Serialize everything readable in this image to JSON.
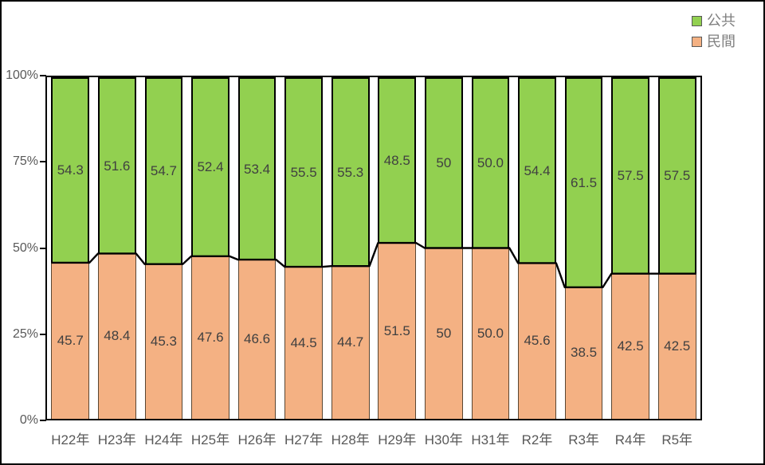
{
  "window": {
    "background": "#ffffff",
    "frame_border_color": "#000000"
  },
  "chart_data": {
    "type": "bar",
    "subtype": "stacked-100-percent-column",
    "title": "",
    "xlabel": "",
    "ylabel": "",
    "grid": false,
    "legend_position": "top-right",
    "categories": [
      "H22年",
      "H23年",
      "H24年",
      "H25年",
      "H26年",
      "H27年",
      "H28年",
      "H29年",
      "H30年",
      "H31年",
      "R2年",
      "R3年",
      "R4年",
      "R5年"
    ],
    "series": [
      {
        "name": "公共",
        "color": "#92D050",
        "values": [
          54.3,
          51.6,
          54.7,
          52.4,
          53.4,
          55.5,
          55.3,
          48.5,
          50,
          50.0,
          54.4,
          61.5,
          57.5,
          57.5
        ],
        "labels": [
          "54.3",
          "51.6",
          "54.7",
          "52.4",
          "53.4",
          "55.5",
          "55.3",
          "48.5",
          "50",
          "50.0",
          "54.4",
          "61.5",
          "57.5",
          "57.5"
        ]
      },
      {
        "name": "民間",
        "color": "#F4B183",
        "values": [
          45.7,
          48.4,
          45.3,
          47.6,
          46.6,
          44.5,
          44.7,
          51.5,
          50,
          50.0,
          45.6,
          38.5,
          42.5,
          42.5
        ],
        "labels": [
          "45.7",
          "48.4",
          "45.3",
          "47.6",
          "46.6",
          "44.5",
          "44.7",
          "51.5",
          "50",
          "50.0",
          "45.6",
          "38.5",
          "42.5",
          "42.5"
        ]
      }
    ],
    "y_axis": {
      "min": 0,
      "max": 100,
      "unit": "%",
      "ticks": [
        "100%",
        "75%",
        "50%",
        "25%",
        "0%"
      ]
    },
    "line_overlay": {
      "follows_series": "民間",
      "color": "#000000"
    },
    "bar_outline_color": "#000000",
    "value_label_color": "#404040",
    "axis_text_color": "#595959",
    "legend_text_color": "#7f7f7f"
  }
}
